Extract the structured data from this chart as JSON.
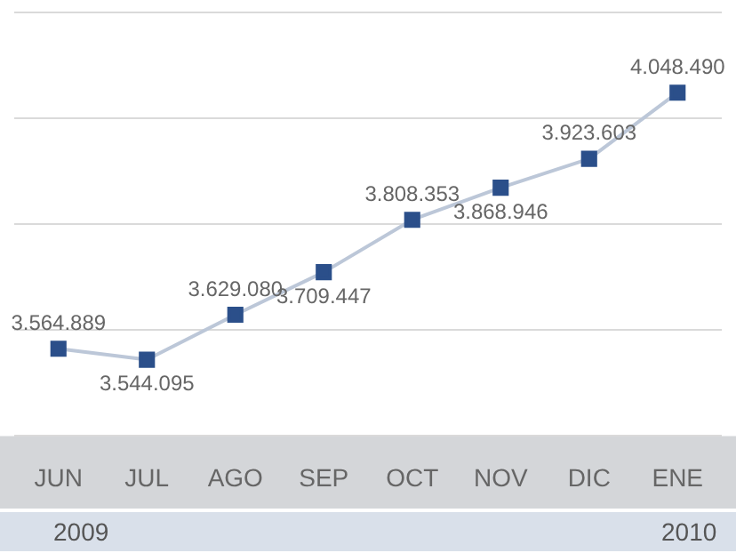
{
  "chart_data": {
    "type": "line",
    "categories": [
      "JUN",
      "JUL",
      "AGO",
      "SEP",
      "OCT",
      "NOV",
      "DIC",
      "ENE"
    ],
    "series": [
      {
        "color": "#2b4f8a",
        "values": [
          3564889,
          3544095,
          3629080,
          3709447,
          3808353,
          3868946,
          3923603,
          4048490
        ],
        "value_labels": [
          "3.564.889",
          "3.544.095",
          "3.629.080",
          "3.709.447",
          "3.808.353",
          "3.868.946",
          "3.923.603",
          "4.048.490"
        ]
      }
    ],
    "tick_labels": "x",
    "grid": "y",
    "marker": "square",
    "legend": false,
    "annotations": [
      "2009",
      "2010"
    ]
  }
}
